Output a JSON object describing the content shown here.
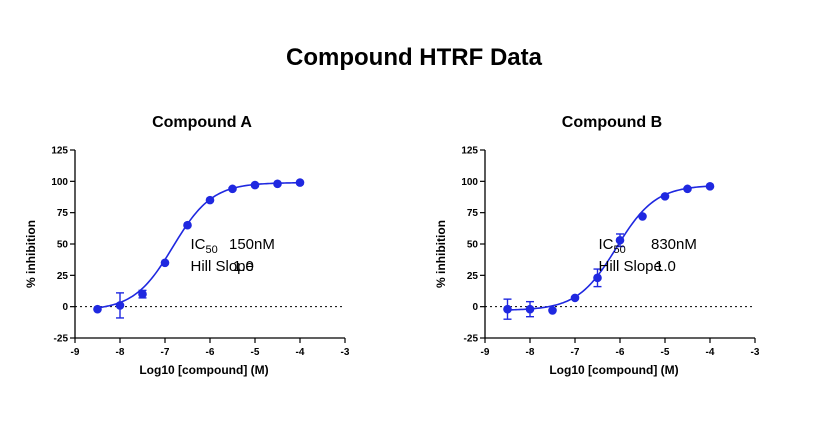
{
  "page_title": "Compound HTRF Data",
  "colors": {
    "series": "#1f28e0",
    "axis": "#000000",
    "baseline": "#000000"
  },
  "chart_data": [
    {
      "type": "scatter",
      "title": "Compound A",
      "xlabel": "Log10 [compound] (M)",
      "ylabel": "% inhibition",
      "xlim": [
        -9,
        -3
      ],
      "ylim": [
        -25,
        125
      ],
      "xticks": [
        "-9",
        "-8",
        "-7",
        "-6",
        "-5",
        "-4",
        "-3"
      ],
      "yticks": [
        "125",
        "100",
        "75",
        "50",
        "25",
        "0",
        "-25"
      ],
      "grid": false,
      "series": [
        {
          "x": [
            -8.5,
            -8.0,
            -7.5,
            -7.0,
            -6.5,
            -6.0,
            -5.5,
            -5.0,
            -4.5,
            -4.0
          ],
          "y": [
            -2,
            1,
            10,
            35,
            65,
            85,
            94,
            97,
            98,
            99
          ],
          "error": [
            0,
            10,
            3,
            0,
            0,
            0,
            0,
            0,
            0,
            0
          ]
        }
      ],
      "fit": {
        "bottom": -3,
        "top": 99,
        "logIC50": -6.82,
        "hill": 1.0
      },
      "annotations": {
        "ic50_label": "IC",
        "ic50_sub": "50",
        "ic50_value": "150nM",
        "hill_label": "Hill Slope",
        "hill_value": "1.0"
      }
    },
    {
      "type": "scatter",
      "title": "Compound B",
      "xlabel": "Log10 [compound] (M)",
      "ylabel": "% inhibition",
      "xlim": [
        -9,
        -3
      ],
      "ylim": [
        -25,
        125
      ],
      "xticks": [
        "-9",
        "-8",
        "-7",
        "-6",
        "-5",
        "-4",
        "-3"
      ],
      "yticks": [
        "125",
        "100",
        "75",
        "50",
        "25",
        "0",
        "-25"
      ],
      "grid": false,
      "series": [
        {
          "x": [
            -8.5,
            -8.0,
            -7.5,
            -7.0,
            -6.5,
            -6.0,
            -5.5,
            -5.0,
            -4.5,
            -4.0
          ],
          "y": [
            -2,
            -2,
            -3,
            7,
            23,
            53,
            72,
            88,
            94,
            96
          ],
          "error": [
            8,
            6,
            0,
            0,
            7,
            5,
            0,
            0,
            0,
            0
          ]
        }
      ],
      "fit": {
        "bottom": -3,
        "top": 97,
        "logIC50": -6.08,
        "hill": 1.0
      },
      "annotations": {
        "ic50_label": "IC",
        "ic50_sub": "50",
        "ic50_value": "830nM",
        "hill_label": "Hill Slope",
        "hill_value": "1.0"
      }
    }
  ]
}
